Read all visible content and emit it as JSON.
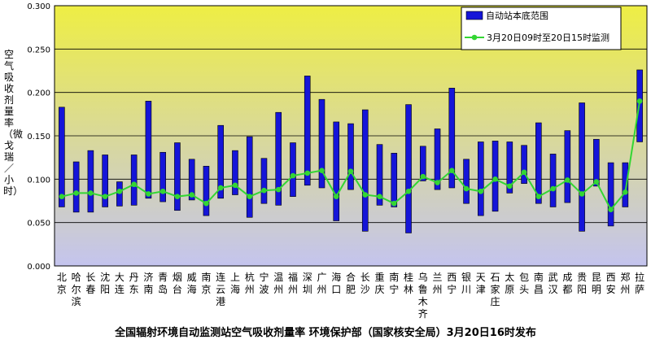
{
  "chart_data": {
    "type": "bar",
    "ylabel": "空气吸收剂量率（微戈瑞／小时）",
    "ylim": [
      0,
      0.3
    ],
    "y_ticks": [
      "0.000",
      "0.050",
      "0.100",
      "0.150",
      "0.200",
      "0.250",
      "0.300"
    ],
    "grid": true,
    "legend_position": "top-right",
    "legend": {
      "range_label": "自动站本底范围",
      "measure_label": "3月20日09时至20日15时监测"
    },
    "colors": {
      "range": "#1515d8",
      "measure": "#33d633",
      "bg_top": "#eeee44",
      "bg_bottom": "#c4c4ee"
    },
    "categories": [
      "北京",
      "哈尔滨",
      "长春",
      "沈阳",
      "大连",
      "丹东",
      "济南",
      "青岛",
      "烟台",
      "威海",
      "南京",
      "连云港",
      "上海",
      "杭州",
      "宁波",
      "温州",
      "福州",
      "深圳",
      "广州",
      "海口",
      "合肥",
      "长沙",
      "重庆",
      "南宁",
      "桂林",
      "乌鲁木齐",
      "兰州",
      "西宁",
      "银川",
      "天津",
      "石家庄",
      "太原",
      "包头",
      "南昌",
      "武汉",
      "成都",
      "贵阳",
      "昆明",
      "西安",
      "郑州",
      "拉萨"
    ],
    "series": [
      {
        "name": "自动站本底范围",
        "low": [
          0.068,
          0.062,
          0.062,
          0.068,
          0.069,
          0.07,
          0.078,
          0.074,
          0.064,
          0.076,
          0.058,
          0.078,
          0.082,
          0.056,
          0.072,
          0.07,
          0.08,
          0.093,
          0.09,
          0.052,
          0.088,
          0.04,
          0.07,
          0.068,
          0.038,
          0.098,
          0.088,
          0.09,
          0.072,
          0.058,
          0.063,
          0.084,
          0.095,
          0.072,
          0.068,
          0.073,
          0.04,
          0.092,
          0.046,
          0.068,
          0.143
        ],
        "high": [
          0.183,
          0.12,
          0.133,
          0.128,
          0.097,
          0.128,
          0.19,
          0.131,
          0.142,
          0.123,
          0.115,
          0.162,
          0.133,
          0.149,
          0.124,
          0.177,
          0.142,
          0.219,
          0.192,
          0.166,
          0.164,
          0.18,
          0.14,
          0.13,
          0.186,
          0.138,
          0.158,
          0.205,
          0.123,
          0.143,
          0.144,
          0.143,
          0.139,
          0.165,
          0.129,
          0.156,
          0.188,
          0.146,
          0.119,
          0.119,
          0.226
        ]
      },
      {
        "name": "3月20日09时至20日15时监测",
        "values": [
          0.08,
          0.084,
          0.084,
          0.08,
          0.086,
          0.094,
          0.083,
          0.086,
          0.08,
          0.082,
          0.072,
          0.09,
          0.093,
          0.08,
          0.087,
          0.088,
          0.104,
          0.107,
          0.11,
          0.08,
          0.109,
          0.082,
          0.08,
          0.072,
          0.086,
          0.103,
          0.096,
          0.11,
          0.089,
          0.086,
          0.1,
          0.092,
          0.108,
          0.08,
          0.089,
          0.099,
          0.083,
          0.097,
          0.065,
          0.085,
          0.19
        ]
      }
    ]
  },
  "footer": "全国辐射环境自动监测站空气吸收剂量率    环境保护部（国家核安全局）3月20日16时发布"
}
